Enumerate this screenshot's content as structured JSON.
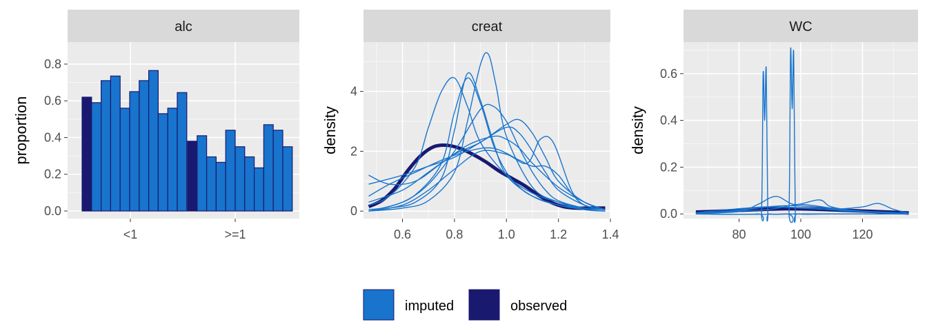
{
  "colors": {
    "imputed": "#1874CD",
    "observed": "#191970",
    "panel_bg": "#EBEBEB",
    "strip_bg": "#D9D9D9",
    "grid": "#FFFFFF"
  },
  "legend": {
    "items": [
      {
        "label": "imputed",
        "color": "#1874CD"
      },
      {
        "label": "observed",
        "color": "#191970"
      }
    ]
  },
  "chart_data": [
    {
      "type": "bar",
      "strip": "alc",
      "ylabel": "proportion",
      "xlabel": "",
      "categories": [
        "<1",
        ">=1"
      ],
      "ylim": [
        0,
        0.92
      ],
      "yticks": [
        "0.0",
        "0.2",
        "0.4",
        "0.6",
        "0.8"
      ],
      "ytick_values": [
        0,
        0.2,
        0.4,
        0.6,
        0.8
      ],
      "observed": [
        0.62,
        0.38
      ],
      "imputed": [
        [
          0.59,
          0.71,
          0.735,
          0.56,
          0.65,
          0.71,
          0.765,
          0.53,
          0.56,
          0.645
        ],
        [
          0.41,
          0.295,
          0.265,
          0.44,
          0.35,
          0.295,
          0.235,
          0.47,
          0.44,
          0.35
        ]
      ]
    },
    {
      "type": "line",
      "strip": "creat",
      "ylabel": "density",
      "xlabel": "",
      "xlim": [
        0.45,
        1.4
      ],
      "ylim": [
        -0.25,
        5.65
      ],
      "xticks": [
        "0.6",
        "0.8",
        "1.0",
        "1.2",
        "1.4"
      ],
      "xtick_values": [
        0.6,
        0.8,
        1.0,
        1.2,
        1.4
      ],
      "yticks": [
        "0",
        "2",
        "4"
      ],
      "ytick_values": [
        0,
        2,
        4
      ],
      "observed": {
        "x": [
          0.47,
          0.52,
          0.57,
          0.62,
          0.67,
          0.72,
          0.77,
          0.82,
          0.87,
          0.92,
          0.97,
          1.02,
          1.07,
          1.12,
          1.17,
          1.22,
          1.27,
          1.32,
          1.38
        ],
        "y": [
          0.15,
          0.35,
          0.75,
          1.35,
          1.85,
          2.15,
          2.2,
          2.1,
          1.9,
          1.65,
          1.35,
          1.1,
          0.85,
          0.55,
          0.3,
          0.15,
          0.1,
          0.1,
          0.1
        ]
      },
      "imputed": [
        {
          "x": [
            0.47,
            0.55,
            0.65,
            0.75,
            0.8,
            0.85,
            0.9,
            0.95,
            1.0,
            1.05,
            1.1,
            1.2,
            1.3,
            1.38
          ],
          "y": [
            0.05,
            0.15,
            0.55,
            1.6,
            3.3,
            4.45,
            3.6,
            2.2,
            1.3,
            0.8,
            0.5,
            0.2,
            0.1,
            0.05
          ]
        },
        {
          "x": [
            0.47,
            0.55,
            0.65,
            0.75,
            0.8,
            0.85,
            0.9,
            0.95,
            1.0,
            1.1,
            1.2,
            1.3,
            1.38
          ],
          "y": [
            0.0,
            0.1,
            0.3,
            1.1,
            2.7,
            4.6,
            3.7,
            2.3,
            1.2,
            0.5,
            0.2,
            0.05,
            0.0
          ]
        },
        {
          "x": [
            0.47,
            0.6,
            0.7,
            0.8,
            0.85,
            0.9,
            0.93,
            0.96,
            1.0,
            1.1,
            1.2,
            1.3,
            1.38
          ],
          "y": [
            0.0,
            0.1,
            0.35,
            1.3,
            3.0,
            4.9,
            5.25,
            4.2,
            2.5,
            0.8,
            0.3,
            0.05,
            0.0
          ]
        },
        {
          "x": [
            0.47,
            0.55,
            0.65,
            0.7,
            0.75,
            0.8,
            0.85,
            0.9,
            1.0,
            1.1,
            1.2,
            1.3,
            1.38
          ],
          "y": [
            0.2,
            0.5,
            1.5,
            2.8,
            4.0,
            4.45,
            3.5,
            2.3,
            1.2,
            0.6,
            0.3,
            0.1,
            0.05
          ]
        },
        {
          "x": [
            0.47,
            0.6,
            0.7,
            0.8,
            0.9,
            0.95,
            1.0,
            1.05,
            1.1,
            1.15,
            1.2,
            1.3,
            1.38
          ],
          "y": [
            0.0,
            0.3,
            0.9,
            2.0,
            3.4,
            3.5,
            3.0,
            2.1,
            1.3,
            0.7,
            0.35,
            0.1,
            0.05
          ]
        },
        {
          "x": [
            0.47,
            0.6,
            0.7,
            0.8,
            0.9,
            1.0,
            1.05,
            1.1,
            1.15,
            1.2,
            1.3,
            1.38
          ],
          "y": [
            0.3,
            0.7,
            1.3,
            1.9,
            2.3,
            2.9,
            3.05,
            2.6,
            1.8,
            1.0,
            0.3,
            0.05
          ]
        },
        {
          "x": [
            0.47,
            0.55,
            0.65,
            0.75,
            0.85,
            0.95,
            1.0,
            1.05,
            1.1,
            1.2,
            1.3,
            1.38
          ],
          "y": [
            1.2,
            0.9,
            1.0,
            1.6,
            2.2,
            2.5,
            2.4,
            2.1,
            1.6,
            0.8,
            0.3,
            0.05
          ]
        },
        {
          "x": [
            0.47,
            0.55,
            0.65,
            0.75,
            0.85,
            0.95,
            1.05,
            1.1,
            1.15,
            1.2,
            1.25,
            1.3,
            1.38
          ],
          "y": [
            0.5,
            0.9,
            1.3,
            1.7,
            2.0,
            2.1,
            1.7,
            1.5,
            1.5,
            1.2,
            0.6,
            0.2,
            0.05
          ]
        },
        {
          "x": [
            0.47,
            0.6,
            0.7,
            0.8,
            0.9,
            1.0,
            1.08,
            1.13,
            1.18,
            1.25,
            1.3,
            1.38
          ],
          "y": [
            0.0,
            0.2,
            0.7,
            1.4,
            2.0,
            1.9,
            1.6,
            2.4,
            2.3,
            0.7,
            0.2,
            0.05
          ]
        },
        {
          "x": [
            0.47,
            0.6,
            0.7,
            0.8,
            0.9,
            1.0,
            1.05,
            1.1,
            1.15,
            1.2,
            1.3,
            1.38
          ],
          "y": [
            0.9,
            1.2,
            1.5,
            1.8,
            2.3,
            2.8,
            2.6,
            2.0,
            1.3,
            0.7,
            0.2,
            0.05
          ]
        }
      ]
    },
    {
      "type": "line",
      "strip": "WC",
      "ylabel": "density",
      "xlabel": "",
      "xlim": [
        62,
        138
      ],
      "ylim": [
        -0.02,
        0.735
      ],
      "xticks": [
        "80",
        "100",
        "120"
      ],
      "xtick_values": [
        80,
        100,
        120
      ],
      "yticks": [
        "0.0",
        "0.2",
        "0.4",
        "0.6"
      ],
      "ytick_values": [
        0,
        0.2,
        0.4,
        0.6
      ],
      "observed": {
        "x": [
          66,
          75,
          85,
          95,
          105,
          115,
          125,
          135
        ],
        "y": [
          0.008,
          0.012,
          0.018,
          0.022,
          0.02,
          0.015,
          0.01,
          0.004
        ]
      },
      "imputed": [
        {
          "x": [
            66,
            86,
            87.3,
            87.8,
            88.3,
            88.8,
            89.3,
            90,
            100,
            135
          ],
          "y": [
            0.0,
            0.0,
            0.02,
            0.6,
            0.4,
            0.62,
            0.02,
            0.0,
            0.0,
            0.0
          ]
        },
        {
          "x": [
            66,
            95,
            96.2,
            96.7,
            97.2,
            97.7,
            98.2,
            99,
            110,
            135
          ],
          "y": [
            0.0,
            0.0,
            0.02,
            0.7,
            0.45,
            0.69,
            0.02,
            0.0,
            0.0,
            0.0
          ]
        },
        {
          "x": [
            66,
            80,
            86,
            92,
            98,
            106,
            110,
            120,
            135
          ],
          "y": [
            0.002,
            0.01,
            0.04,
            0.075,
            0.04,
            0.06,
            0.03,
            0.01,
            0.002
          ]
        },
        {
          "x": [
            66,
            80,
            90,
            100,
            110,
            120,
            125,
            130,
            135
          ],
          "y": [
            0.002,
            0.015,
            0.03,
            0.025,
            0.02,
            0.03,
            0.045,
            0.02,
            0.003
          ]
        },
        {
          "x": [
            66,
            75,
            85,
            95,
            105,
            115,
            125,
            135
          ],
          "y": [
            0.004,
            0.01,
            0.025,
            0.035,
            0.03,
            0.015,
            0.008,
            0.002
          ]
        },
        {
          "x": [
            66,
            80,
            90,
            100,
            110,
            120,
            135
          ],
          "y": [
            0.003,
            0.012,
            0.02,
            0.04,
            0.025,
            0.012,
            0.003
          ]
        },
        {
          "x": [
            66,
            78,
            88,
            96,
            106,
            118,
            135
          ],
          "y": [
            0.005,
            0.02,
            0.03,
            0.028,
            0.022,
            0.01,
            0.002
          ]
        }
      ]
    }
  ]
}
